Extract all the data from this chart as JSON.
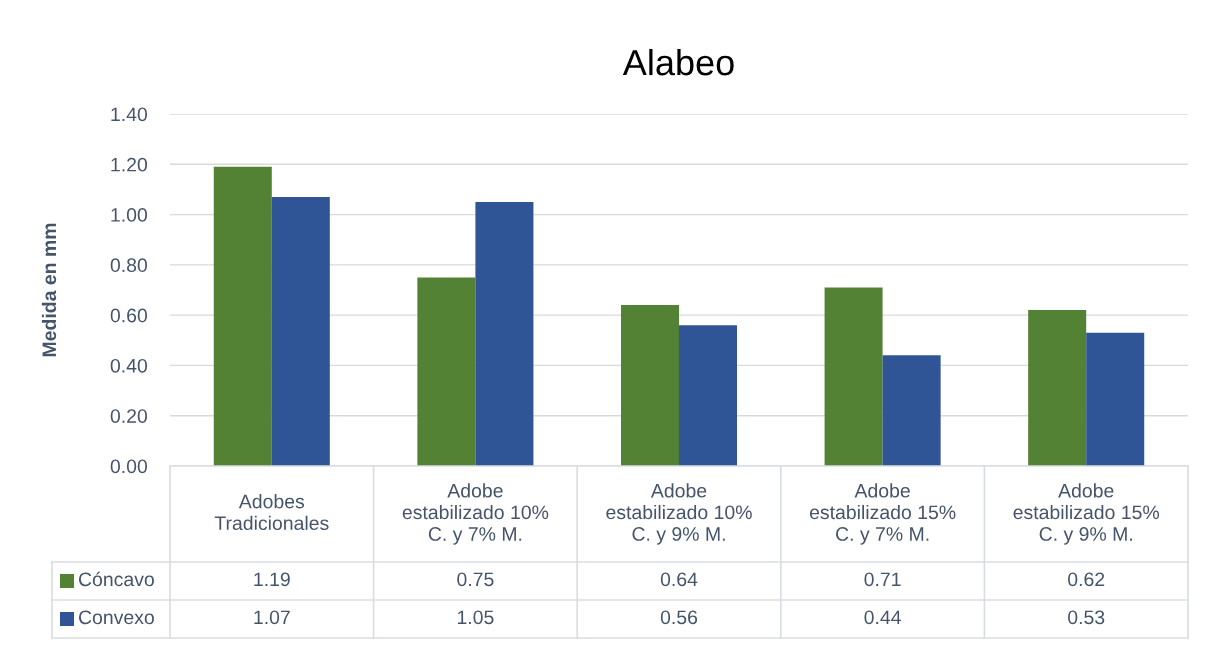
{
  "chart_data": {
    "type": "bar",
    "title": "Alabeo",
    "ylabel": "Medida en mm",
    "categories": [
      "Adobes\nTradicionales",
      "Adobe\nestabilizado 10%\nC. y 7% M.",
      "Adobe\nestabilizado 10%\nC. y 9% M.",
      "Adobe\nestabilizado 15%\nC. y 7% M.",
      "Adobe\nestabilizado 15%\nC. y 9% M."
    ],
    "series": [
      {
        "name": "Cóncavo",
        "color": "#548235",
        "values": [
          1.19,
          0.75,
          0.64,
          0.71,
          0.62
        ]
      },
      {
        "name": "Convexo",
        "color": "#2f5597",
        "values": [
          1.07,
          1.05,
          0.56,
          0.44,
          0.53
        ]
      }
    ],
    "ylim": [
      0,
      1.4
    ],
    "yticks": [
      {
        "value": 0,
        "label": "0.00"
      },
      {
        "value": 0.2,
        "label": "0.20"
      },
      {
        "value": 0.4,
        "label": "0.40"
      },
      {
        "value": 0.6,
        "label": "0.60"
      },
      {
        "value": 0.8,
        "label": "0.80"
      },
      {
        "value": 1.0,
        "label": "1.00"
      },
      {
        "value": 1.2,
        "label": "1.20"
      },
      {
        "value": 1.4,
        "label": "1.40"
      }
    ],
    "grid": "y",
    "legend": "bottom",
    "data_labels": true
  }
}
